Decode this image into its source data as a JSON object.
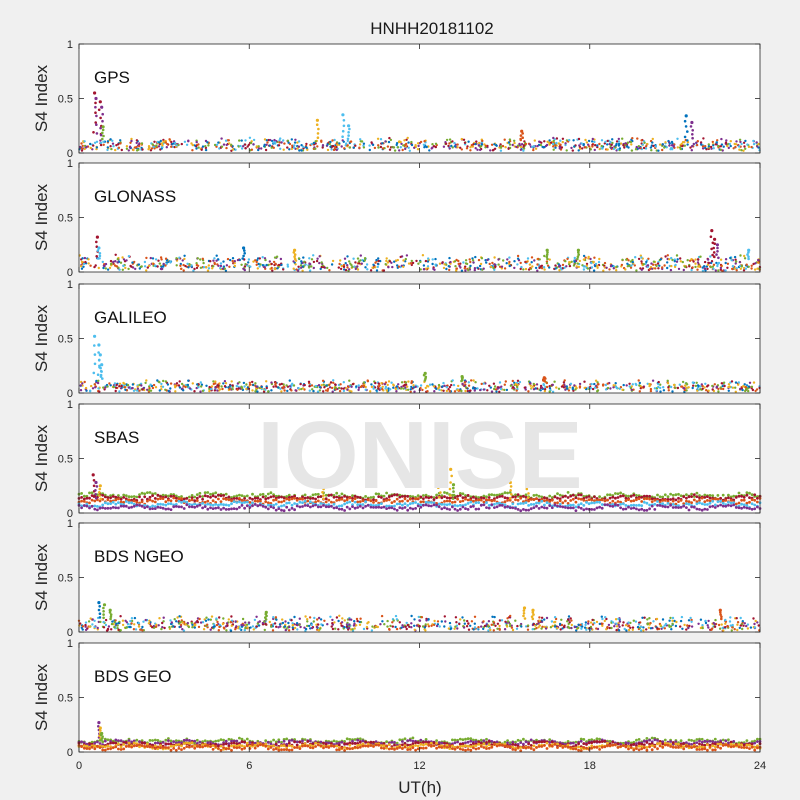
{
  "figure": {
    "title": "HNHH20181102",
    "watermark": "IONISE"
  },
  "colors": {
    "series": [
      "#0072BD",
      "#D95319",
      "#EDB120",
      "#7E2F8E",
      "#77AC30",
      "#4DBEEE",
      "#A2142F"
    ],
    "axes": "#262626",
    "plot_bg": "#ffffff",
    "figure_bg": "#f0f0f0"
  },
  "chart_data": [
    {
      "type": "scatter",
      "panel": "GPS",
      "xlabel": "",
      "ylabel": "S4 Index",
      "xlim": [
        0,
        24
      ],
      "ylim": [
        0,
        1
      ],
      "xticks": [
        0,
        6,
        12,
        18,
        24
      ],
      "yticks": [
        0,
        0.5,
        1
      ],
      "yticklabels": [
        "0",
        "0.5",
        "1"
      ],
      "baseline_range": [
        0.04,
        0.12
      ],
      "spikes": [
        {
          "x": 0.55,
          "y": 0.55,
          "color": 6
        },
        {
          "x": 0.6,
          "y": 0.5,
          "color": 3
        },
        {
          "x": 0.75,
          "y": 0.47,
          "color": 6
        },
        {
          "x": 0.8,
          "y": 0.42,
          "color": 3
        },
        {
          "x": 0.85,
          "y": 0.24,
          "color": 4
        },
        {
          "x": 8.4,
          "y": 0.3,
          "color": 2
        },
        {
          "x": 9.3,
          "y": 0.35,
          "color": 5
        },
        {
          "x": 9.5,
          "y": 0.25,
          "color": 5
        },
        {
          "x": 21.4,
          "y": 0.34,
          "color": 0
        },
        {
          "x": 21.6,
          "y": 0.28,
          "color": 3
        },
        {
          "x": 15.6,
          "y": 0.2,
          "color": 1
        }
      ]
    },
    {
      "type": "scatter",
      "panel": "GLONASS",
      "xlabel": "",
      "ylabel": "S4 Index",
      "xlim": [
        0,
        24
      ],
      "ylim": [
        0,
        1
      ],
      "xticks": [
        0,
        6,
        12,
        18,
        24
      ],
      "yticks": [
        0,
        0.5,
        1
      ],
      "yticklabels": [
        "0",
        "0.5",
        "1"
      ],
      "baseline_range": [
        0.03,
        0.14
      ],
      "spikes": [
        {
          "x": 0.65,
          "y": 0.32,
          "color": 6
        },
        {
          "x": 0.7,
          "y": 0.22,
          "color": 5
        },
        {
          "x": 5.8,
          "y": 0.22,
          "color": 0
        },
        {
          "x": 7.6,
          "y": 0.2,
          "color": 2
        },
        {
          "x": 16.5,
          "y": 0.2,
          "color": 4
        },
        {
          "x": 17.6,
          "y": 0.2,
          "color": 4
        },
        {
          "x": 22.3,
          "y": 0.38,
          "color": 6
        },
        {
          "x": 22.4,
          "y": 0.3,
          "color": 6
        },
        {
          "x": 22.5,
          "y": 0.25,
          "color": 3
        },
        {
          "x": 23.6,
          "y": 0.2,
          "color": 5
        }
      ]
    },
    {
      "type": "scatter",
      "panel": "GALILEO",
      "xlabel": "",
      "ylabel": "S4 Index",
      "xlim": [
        0,
        24
      ],
      "ylim": [
        0,
        1
      ],
      "xticks": [
        0,
        6,
        12,
        18,
        24
      ],
      "yticks": [
        0,
        0.5,
        1
      ],
      "yticklabels": [
        "0",
        "0.5",
        "1"
      ],
      "baseline_range": [
        0.03,
        0.1
      ],
      "spikes": [
        {
          "x": 0.55,
          "y": 0.52,
          "color": 5
        },
        {
          "x": 0.7,
          "y": 0.44,
          "color": 5
        },
        {
          "x": 0.75,
          "y": 0.35,
          "color": 5
        },
        {
          "x": 0.8,
          "y": 0.26,
          "color": 5
        },
        {
          "x": 12.2,
          "y": 0.18,
          "color": 4
        },
        {
          "x": 13.5,
          "y": 0.15,
          "color": 4
        },
        {
          "x": 16.4,
          "y": 0.14,
          "color": 1
        }
      ]
    },
    {
      "type": "scatter",
      "panel": "SBAS",
      "xlabel": "",
      "ylabel": "S4 Index",
      "xlim": [
        0,
        24
      ],
      "ylim": [
        0,
        1
      ],
      "xticks": [
        0,
        6,
        12,
        18,
        24
      ],
      "yticks": [
        0,
        0.5,
        1
      ],
      "yticklabels": [
        "0",
        "0.5",
        "1"
      ],
      "bands": [
        {
          "y": 0.16,
          "color": 4
        },
        {
          "y": 0.14,
          "color": 6
        },
        {
          "y": 0.11,
          "color": 1
        },
        {
          "y": 0.08,
          "color": 5
        },
        {
          "y": 0.05,
          "color": 3
        }
      ],
      "spikes": [
        {
          "x": 0.5,
          "y": 0.35,
          "color": 6
        },
        {
          "x": 0.6,
          "y": 0.28,
          "color": 3
        },
        {
          "x": 0.75,
          "y": 0.25,
          "color": 2
        },
        {
          "x": 8.6,
          "y": 0.25,
          "color": 2
        },
        {
          "x": 12.7,
          "y": 0.32,
          "color": 2
        },
        {
          "x": 13.1,
          "y": 0.4,
          "color": 2
        },
        {
          "x": 13.2,
          "y": 0.26,
          "color": 4
        },
        {
          "x": 15.2,
          "y": 0.28,
          "color": 2
        },
        {
          "x": 15.8,
          "y": 0.3,
          "color": 2
        }
      ]
    },
    {
      "type": "scatter",
      "panel": "BDS NGEO",
      "xlabel": "",
      "ylabel": "S4 Index",
      "xlim": [
        0,
        24
      ],
      "ylim": [
        0,
        1
      ],
      "xticks": [
        0,
        6,
        12,
        18,
        24
      ],
      "yticks": [
        0,
        0.5,
        1
      ],
      "yticklabels": [
        "0",
        "0.5",
        "1"
      ],
      "baseline_range": [
        0.03,
        0.13
      ],
      "spikes": [
        {
          "x": 0.7,
          "y": 0.27,
          "color": 0
        },
        {
          "x": 0.9,
          "y": 0.25,
          "color": 4
        },
        {
          "x": 1.1,
          "y": 0.2,
          "color": 4
        },
        {
          "x": 6.6,
          "y": 0.18,
          "color": 4
        },
        {
          "x": 15.7,
          "y": 0.22,
          "color": 2
        },
        {
          "x": 16.0,
          "y": 0.2,
          "color": 2
        },
        {
          "x": 22.6,
          "y": 0.2,
          "color": 1
        }
      ]
    },
    {
      "type": "scatter",
      "panel": "BDS GEO",
      "xlabel": "UT(h)",
      "ylabel": "S4 Index",
      "xlim": [
        0,
        24
      ],
      "ylim": [
        0,
        1
      ],
      "xticks": [
        0,
        6,
        12,
        18,
        24
      ],
      "yticks": [
        0,
        0.5,
        1
      ],
      "yticklabels": [
        "0",
        "0.5",
        "1"
      ],
      "xticklabels": [
        "0",
        "6",
        "12",
        "18",
        "24"
      ],
      "bands": [
        {
          "y": 0.1,
          "color": 4
        },
        {
          "y": 0.085,
          "color": 3
        },
        {
          "y": 0.07,
          "color": 6
        },
        {
          "y": 0.055,
          "color": 2
        },
        {
          "y": 0.04,
          "color": 1
        }
      ],
      "spikes": [
        {
          "x": 0.7,
          "y": 0.27,
          "color": 3
        },
        {
          "x": 0.75,
          "y": 0.22,
          "color": 2
        },
        {
          "x": 0.8,
          "y": 0.17,
          "color": 4
        }
      ]
    }
  ]
}
